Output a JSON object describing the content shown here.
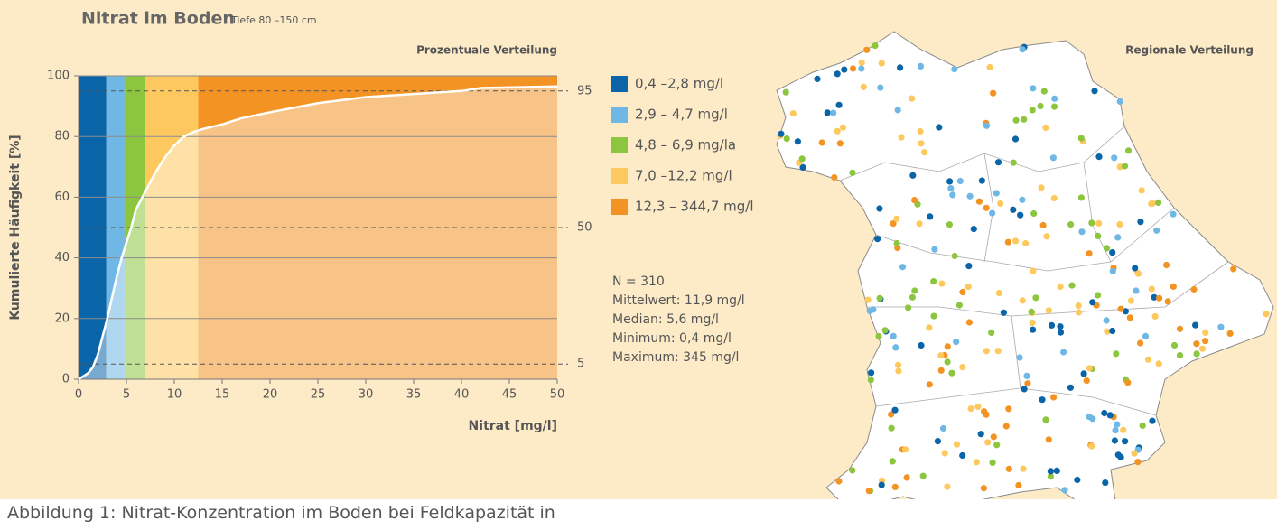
{
  "chart_data": {
    "type": "line",
    "title": "Nitrat im Boden",
    "subtitle": "Tiefe 80 –150 cm",
    "panel_left": "Prozentuale Verteilung",
    "panel_right": "Regionale Verteilung",
    "x_label": "Nitrat [mg/l]",
    "y_label": "Kumulierte Häufigkeit [%]",
    "x": [
      0,
      0.5,
      1,
      1.5,
      2,
      2.5,
      3,
      3.5,
      4,
      4.5,
      5,
      5.5,
      6,
      6.5,
      7,
      8,
      9,
      10,
      11,
      12,
      13,
      15,
      17,
      20,
      25,
      30,
      35,
      40,
      42,
      50
    ],
    "values": [
      0,
      1,
      2,
      4,
      8,
      14,
      20,
      27,
      34,
      40,
      45,
      50,
      56,
      59,
      62,
      68,
      73,
      77,
      80,
      81.5,
      82.5,
      84,
      86,
      88,
      91,
      93,
      94,
      95,
      96,
      96.5
    ],
    "color": "#ffffff",
    "bands": [
      {
        "name": "0,4 –2,8 mg/l",
        "color": "#0a64a8",
        "from": 0,
        "to": 2.9
      },
      {
        "name": "2,9 – 4,7 mg/l",
        "color": "#6fb7e4",
        "from": 2.9,
        "to": 4.8
      },
      {
        "name": "4,8 – 6,9 mg/la",
        "color": "#8cc63f",
        "from": 4.8,
        "to": 7.0
      },
      {
        "name": "7,0 –12,2 mg/l",
        "color": "#fdc95f",
        "from": 7.0,
        "to": 12.5
      },
      {
        "name": "12,3 – 344,7 mg/l",
        "color": "#f39323",
        "from": 12.5,
        "to": 50
      }
    ],
    "xlim": [
      0,
      50
    ],
    "xticks": [
      0,
      5,
      10,
      15,
      20,
      25,
      30,
      35,
      40,
      45,
      50
    ],
    "ylim": [
      0,
      100
    ],
    "yticks": [
      0,
      20,
      40,
      60,
      80,
      100
    ],
    "y2lim": [
      0,
      100
    ],
    "y2ticks": [
      5,
      50,
      95
    ],
    "grid": true,
    "stats": [
      "N = 310",
      "Mittelwert: 11,9 mg/l",
      "Median: 5,6 mg/l",
      "Minimum: 0,4 mg/l",
      "Maximum: 345 mg/l"
    ]
  },
  "caption": "Abbildung 1: Nitrat-Konzentration im Boden bei Feldkapazität in"
}
